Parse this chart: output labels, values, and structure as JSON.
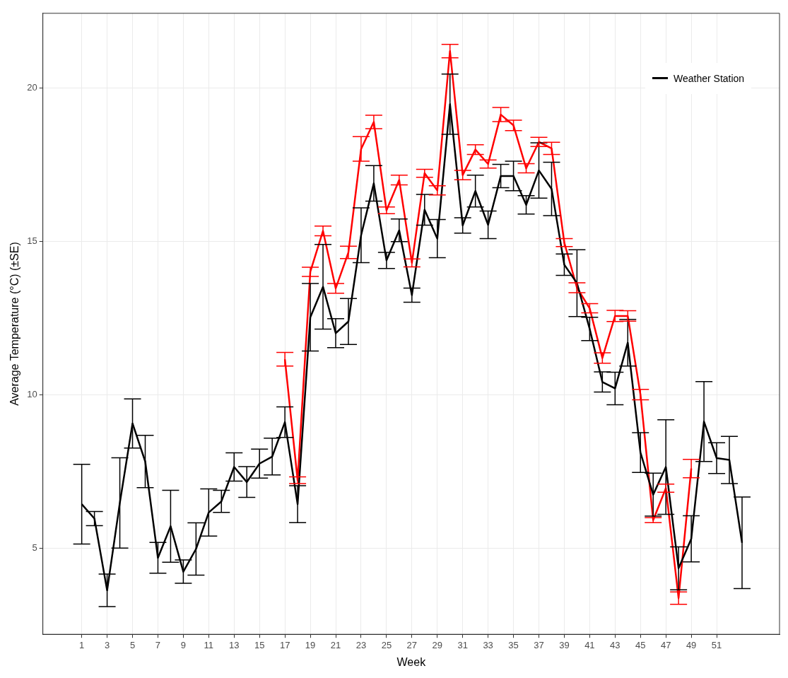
{
  "chart_data": {
    "type": "line",
    "xlabel": "Week",
    "ylabel": "Average Temperature (°C) (±SE)",
    "xlim": [
      -2.06,
      55.95
    ],
    "xticks": [
      1,
      3,
      5,
      7,
      9,
      11,
      13,
      15,
      17,
      19,
      21,
      23,
      25,
      27,
      29,
      31,
      33,
      35,
      37,
      39,
      41,
      43,
      45,
      47,
      49,
      51
    ],
    "ylim": [
      2.2,
      22.43
    ],
    "yticks": [
      5,
      10,
      15,
      20
    ],
    "grid": true,
    "legend": "top right",
    "marker": "none",
    "line_style": "solid",
    "series": [
      {
        "name": "Weather Station",
        "color": "#000000",
        "x": [
          1,
          2,
          3,
          4,
          5,
          6,
          7,
          8,
          9,
          10,
          11,
          12,
          13,
          14,
          15,
          16,
          17,
          18,
          19,
          20,
          21,
          22,
          23,
          24,
          25,
          26,
          27,
          28,
          29,
          30,
          31,
          32,
          33,
          34,
          35,
          36,
          37,
          38,
          39,
          40,
          41,
          42,
          43,
          44,
          45,
          46,
          47,
          48,
          49,
          50,
          51,
          52,
          53
        ],
        "values": [
          6.44,
          5.97,
          3.63,
          6.48,
          9.07,
          7.83,
          4.69,
          5.72,
          4.24,
          4.98,
          6.17,
          6.53,
          7.65,
          7.16,
          7.76,
          7.99,
          9.11,
          6.44,
          12.53,
          13.52,
          12.01,
          12.39,
          15.2,
          16.89,
          14.38,
          15.36,
          13.25,
          16.03,
          15.09,
          19.47,
          15.52,
          16.64,
          15.54,
          17.13,
          17.13,
          16.19,
          17.31,
          16.71,
          14.24,
          13.64,
          12.15,
          10.42,
          10.21,
          11.7,
          8.12,
          6.75,
          7.65,
          4.35,
          5.31,
          9.13,
          7.94,
          7.88,
          5.18
        ],
        "errors": [
          1.3,
          0.23,
          0.53,
          1.47,
          0.8,
          0.85,
          0.5,
          1.17,
          0.38,
          0.85,
          0.77,
          0.36,
          0.46,
          0.5,
          0.47,
          0.6,
          0.5,
          0.6,
          1.1,
          1.38,
          0.47,
          0.75,
          0.89,
          0.58,
          0.26,
          0.37,
          0.23,
          0.5,
          0.62,
          0.98,
          0.25,
          0.52,
          0.45,
          0.38,
          0.48,
          0.3,
          0.9,
          0.87,
          0.35,
          1.09,
          0.38,
          0.33,
          0.53,
          0.76,
          0.65,
          0.7,
          1.54,
          0.7,
          0.75,
          1.3,
          0.5,
          0.77,
          1.49
        ]
      },
      {
        "color": "#ff0000",
        "x": [
          17,
          18,
          19,
          20,
          21,
          22,
          23,
          24,
          25,
          26,
          27,
          28,
          29,
          30,
          31,
          32,
          33,
          34,
          35,
          36,
          37,
          38,
          39,
          40,
          41,
          42,
          43,
          44,
          45,
          46,
          47,
          48,
          49
        ],
        "values": [
          11.16,
          7.22,
          14.01,
          15.34,
          13.47,
          14.64,
          18.01,
          18.89,
          16.01,
          17.0,
          14.3,
          17.22,
          16.66,
          21.2,
          17.16,
          17.99,
          17.52,
          19.13,
          18.78,
          17.38,
          18.24,
          18.03,
          14.96,
          13.49,
          12.82,
          11.2,
          12.57,
          12.57,
          10.01,
          5.92,
          6.96,
          3.38,
          7.6
        ],
        "errors": [
          0.22,
          0.11,
          0.15,
          0.16,
          0.16,
          0.2,
          0.4,
          0.22,
          0.11,
          0.16,
          0.13,
          0.13,
          0.15,
          0.22,
          0.15,
          0.16,
          0.13,
          0.23,
          0.17,
          0.15,
          0.15,
          0.2,
          0.13,
          0.16,
          0.15,
          0.17,
          0.18,
          0.17,
          0.17,
          0.08,
          0.13,
          0.2,
          0.3
        ]
      }
    ]
  }
}
